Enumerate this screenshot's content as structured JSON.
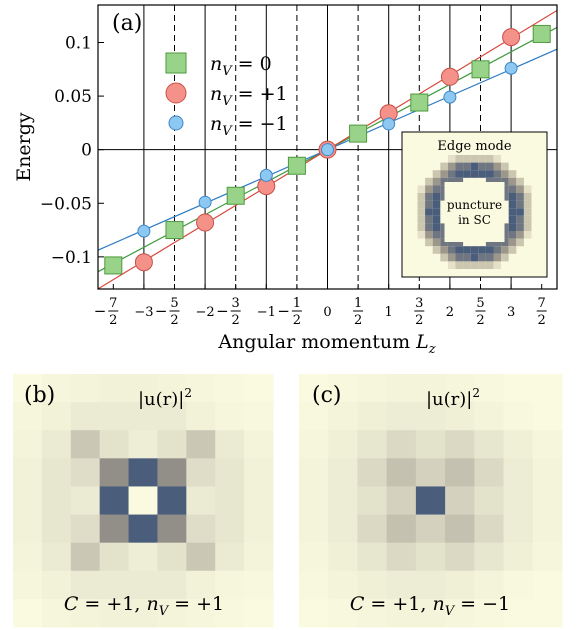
{
  "chart_data": [
    {
      "type": "scatter",
      "panel_label": "(a)",
      "xlabel": "Angular momentum",
      "xlabel_symbol": "L",
      "xlabel_symbol_sub": "z",
      "ylabel": "Energy",
      "xlim": [
        -3.75,
        3.75
      ],
      "ylim": [
        -0.13,
        0.135
      ],
      "yticks": [
        -0.1,
        -0.05,
        0,
        0.05,
        0.1
      ],
      "ytick_labels": [
        "−0.1",
        "−0.05",
        "0",
        "0.05",
        "0.1"
      ],
      "xticks": [
        -3.5,
        -3,
        -2.5,
        -2,
        -1.5,
        -1,
        -0.5,
        0,
        0.5,
        1,
        1.5,
        2,
        2.5,
        3,
        3.5
      ],
      "xtick_labels": [
        "−7/2",
        "−3",
        "−5/2",
        "−2",
        "−3/2",
        "−1",
        "−1/2",
        "0",
        "1/2",
        "1",
        "3/2",
        "2",
        "5/2",
        "3",
        "7/2"
      ],
      "vlines_solid": [
        -3,
        -2,
        -1,
        0,
        1,
        2,
        3
      ],
      "vlines_dashed": [
        -2.5,
        -1.5,
        -0.5,
        0.5,
        1.5,
        2.5
      ],
      "hline": 0,
      "legend_position": "top-left",
      "series": [
        {
          "name": "n_V = 0",
          "name_prefix": "n",
          "name_sub": "V",
          "name_value": " = 0",
          "marker": "square",
          "color": "#99d38a",
          "edge": "#4d9a3c",
          "line": "#3a9a3a",
          "x": [
            -3.5,
            -2.5,
            -1.5,
            -0.5,
            0.5,
            1.5,
            2.5,
            3.5
          ],
          "y": [
            -0.108,
            -0.075,
            -0.043,
            -0.015,
            0.015,
            0.044,
            0.075,
            0.108
          ]
        },
        {
          "name": "n_V = +1",
          "name_prefix": "n",
          "name_sub": "V",
          "name_value": " = +1",
          "marker": "circle",
          "color": "#f4928a",
          "edge": "#c8504a",
          "line": "#d8463c",
          "x": [
            -3,
            -2,
            -1,
            0,
            1,
            2,
            3
          ],
          "y": [
            -0.105,
            -0.068,
            -0.034,
            0,
            0.034,
            0.068,
            0.105
          ]
        },
        {
          "name": "n_V = −1",
          "name_prefix": "n",
          "name_sub": "V",
          "name_value": " = −1",
          "marker": "circle",
          "color": "#8cc8f2",
          "edge": "#3e86c4",
          "line": "#2e7cc4",
          "x": [
            -3,
            -2,
            -1,
            0,
            1,
            2,
            3
          ],
          "y": [
            -0.076,
            -0.049,
            -0.024,
            0,
            0.024,
            0.049,
            0.076
          ]
        }
      ],
      "inset": {
        "title": "Edge mode",
        "label_line1": "puncture",
        "label_line2": "in SC",
        "background": "#fafae0"
      }
    },
    {
      "type": "heatmap",
      "panel_label": "(b)",
      "title_text": "|u(r)|",
      "title_sup": "2",
      "caption_C": "C",
      "caption_C_value": " = +1, ",
      "caption_n": "n",
      "caption_n_sub": "V",
      "caption_n_value": " = +1",
      "colors": {
        "low": "#fafae0",
        "mid": "#9a948a",
        "high": "#4a5e7c"
      },
      "grid": [
        [
          0.0,
          0.02,
          0.03,
          0.04,
          0.04,
          0.03,
          0.02,
          0.01,
          0.0
        ],
        [
          0.02,
          0.04,
          0.08,
          0.08,
          0.08,
          0.08,
          0.04,
          0.02,
          0.01
        ],
        [
          0.03,
          0.08,
          0.25,
          0.12,
          0.06,
          0.12,
          0.25,
          0.08,
          0.03
        ],
        [
          0.04,
          0.1,
          0.14,
          0.55,
          1.0,
          0.55,
          0.14,
          0.1,
          0.04
        ],
        [
          0.04,
          0.1,
          0.08,
          1.0,
          0.0,
          1.0,
          0.08,
          0.1,
          0.04
        ],
        [
          0.04,
          0.1,
          0.14,
          0.55,
          1.0,
          0.55,
          0.14,
          0.1,
          0.04
        ],
        [
          0.03,
          0.08,
          0.25,
          0.12,
          0.06,
          0.12,
          0.25,
          0.08,
          0.03
        ],
        [
          0.02,
          0.04,
          0.08,
          0.08,
          0.08,
          0.08,
          0.04,
          0.02,
          0.01
        ],
        [
          0.0,
          0.02,
          0.03,
          0.04,
          0.04,
          0.03,
          0.02,
          0.01,
          0.0
        ]
      ]
    },
    {
      "type": "heatmap",
      "panel_label": "(c)",
      "title_text": "|u(r)|",
      "title_sup": "2",
      "caption_C": "C",
      "caption_C_value": " = +1, ",
      "caption_n": "n",
      "caption_n_sub": "V",
      "caption_n_value": " = −1",
      "colors": {
        "low": "#fafae0",
        "mid": "#9a948a",
        "high": "#4a5e7c"
      },
      "grid": [
        [
          0.0,
          0.01,
          0.02,
          0.03,
          0.03,
          0.02,
          0.01,
          0.0,
          0.0
        ],
        [
          0.01,
          0.03,
          0.05,
          0.07,
          0.07,
          0.05,
          0.03,
          0.01,
          0.0
        ],
        [
          0.02,
          0.05,
          0.1,
          0.16,
          0.12,
          0.16,
          0.1,
          0.05,
          0.02
        ],
        [
          0.03,
          0.07,
          0.16,
          0.28,
          0.2,
          0.28,
          0.16,
          0.07,
          0.03
        ],
        [
          0.03,
          0.07,
          0.12,
          0.2,
          1.0,
          0.2,
          0.12,
          0.07,
          0.03
        ],
        [
          0.03,
          0.07,
          0.16,
          0.28,
          0.2,
          0.28,
          0.16,
          0.07,
          0.03
        ],
        [
          0.02,
          0.05,
          0.1,
          0.16,
          0.12,
          0.16,
          0.1,
          0.05,
          0.02
        ],
        [
          0.01,
          0.03,
          0.05,
          0.07,
          0.07,
          0.05,
          0.03,
          0.01,
          0.0
        ],
        [
          0.0,
          0.01,
          0.02,
          0.03,
          0.03,
          0.02,
          0.01,
          0.0,
          0.0
        ]
      ]
    }
  ]
}
